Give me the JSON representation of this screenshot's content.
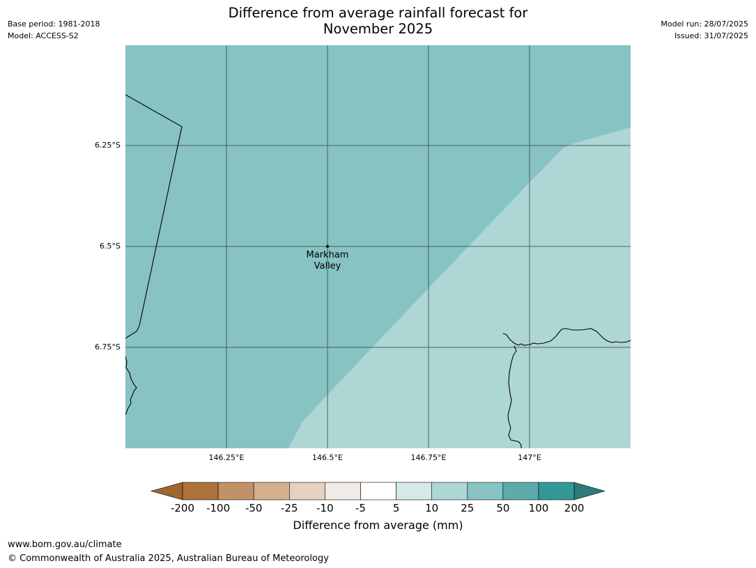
{
  "header": {
    "title_line1": "Difference from average rainfall forecast for",
    "title_line2": "November 2025",
    "base_period": "Base period: 1981-2018",
    "model": "Model: ACCESS-S2",
    "model_run": "Model run: 28/07/2025",
    "issued": "Issued: 31/07/2025"
  },
  "map": {
    "lat_labels": [
      "6.25°S",
      "6.5°S",
      "6.75°S"
    ],
    "lon_labels": [
      "146.25°E",
      "146.5°E",
      "146.75°E",
      "147°E"
    ],
    "place": {
      "name_line1": "Markham",
      "name_line2": "Valley"
    },
    "colors": {
      "main_fill": "#87c3c2",
      "light_fill": "#aed6d5",
      "grid": "#2a3f3f"
    }
  },
  "legend": {
    "title": "Difference from average (mm)",
    "labels": [
      "-200",
      "-100",
      "-50",
      "-25",
      "-10",
      "-5",
      "5",
      "10",
      "25",
      "50",
      "100",
      "200"
    ],
    "colors": [
      "#a0662f",
      "#ad733b",
      "#c29267",
      "#d4b08f",
      "#e5d1bf",
      "#f0ebe6",
      "#ffffff",
      "#d5e9e8",
      "#aed6d5",
      "#87c3c2",
      "#5cacab",
      "#339998",
      "#2c7a79"
    ]
  },
  "footer": {
    "url": "www.bom.gov.au/climate",
    "copyright": "© Commonwealth of Australia 2025, Australian Bureau of Meteorology"
  }
}
